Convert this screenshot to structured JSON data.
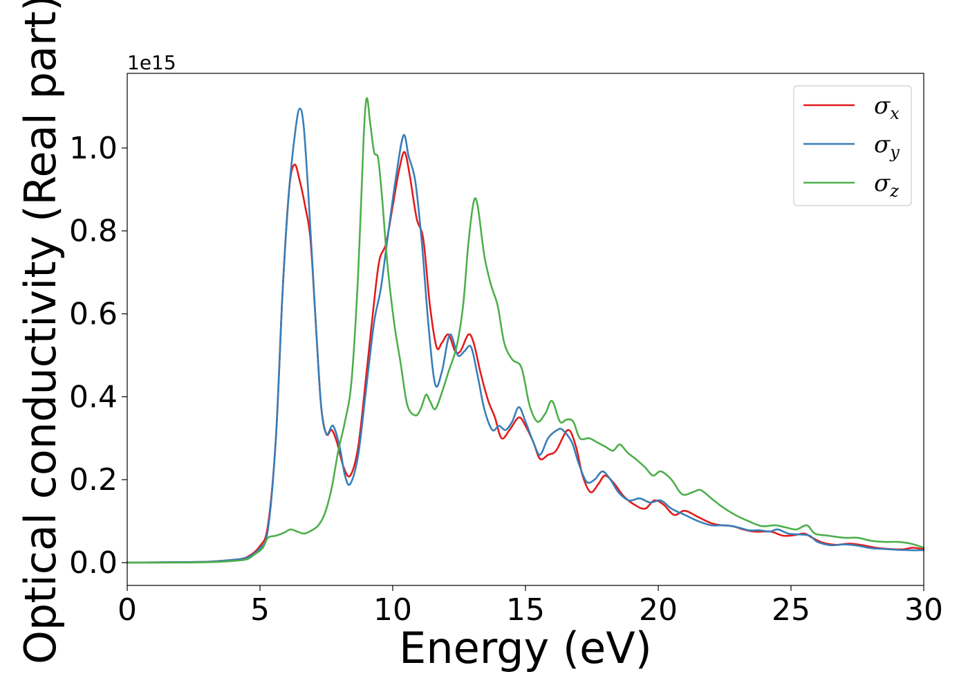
{
  "chart_data": {
    "type": "line",
    "title": "",
    "xlabel": "Energy (eV)",
    "ylabel": "Optical conductivity (Real part)",
    "y_offset_label": "1e15",
    "y_scale": 1000000000000000.0,
    "xlim": [
      0,
      30
    ],
    "ylim": [
      -0.055,
      1.18
    ],
    "xticks": [
      0,
      5,
      10,
      15,
      20,
      25,
      30
    ],
    "xtick_labels": [
      "0",
      "5",
      "10",
      "15",
      "20",
      "25",
      "30"
    ],
    "yticks": [
      0.0,
      0.2,
      0.4,
      0.6,
      0.8,
      1.0
    ],
    "ytick_labels": [
      "0.0",
      "0.2",
      "0.4",
      "0.6",
      "0.8",
      "1.0"
    ],
    "grid": false,
    "legend": "top-right",
    "series": [
      {
        "name": "σx",
        "symbol": "σ",
        "subscript": "x",
        "color": "#e41a1c",
        "points": [
          [
            0,
            0.0
          ],
          [
            2,
            0.001
          ],
          [
            3,
            0.002
          ],
          [
            3.5,
            0.004
          ],
          [
            4,
            0.007
          ],
          [
            4.5,
            0.013
          ],
          [
            5,
            0.04
          ],
          [
            5.3,
            0.09
          ],
          [
            5.6,
            0.3
          ],
          [
            5.85,
            0.65
          ],
          [
            6.1,
            0.9
          ],
          [
            6.3,
            0.96
          ],
          [
            6.5,
            0.92
          ],
          [
            6.7,
            0.86
          ],
          [
            6.9,
            0.78
          ],
          [
            7.1,
            0.58
          ],
          [
            7.3,
            0.38
          ],
          [
            7.5,
            0.31
          ],
          [
            7.7,
            0.32
          ],
          [
            7.9,
            0.29
          ],
          [
            8.15,
            0.23
          ],
          [
            8.4,
            0.21
          ],
          [
            8.7,
            0.28
          ],
          [
            9.0,
            0.45
          ],
          [
            9.3,
            0.63
          ],
          [
            9.5,
            0.73
          ],
          [
            9.75,
            0.77
          ],
          [
            10.0,
            0.86
          ],
          [
            10.25,
            0.95
          ],
          [
            10.45,
            0.99
          ],
          [
            10.65,
            0.93
          ],
          [
            10.9,
            0.83
          ],
          [
            11.15,
            0.78
          ],
          [
            11.4,
            0.62
          ],
          [
            11.65,
            0.52
          ],
          [
            11.85,
            0.53
          ],
          [
            12.1,
            0.55
          ],
          [
            12.35,
            0.51
          ],
          [
            12.55,
            0.51
          ],
          [
            12.85,
            0.55
          ],
          [
            13.05,
            0.53
          ],
          [
            13.3,
            0.46
          ],
          [
            13.6,
            0.39
          ],
          [
            13.85,
            0.35
          ],
          [
            14.1,
            0.3
          ],
          [
            14.4,
            0.32
          ],
          [
            14.75,
            0.35
          ],
          [
            15.0,
            0.33
          ],
          [
            15.3,
            0.29
          ],
          [
            15.55,
            0.25
          ],
          [
            15.85,
            0.26
          ],
          [
            16.15,
            0.27
          ],
          [
            16.6,
            0.32
          ],
          [
            16.9,
            0.28
          ],
          [
            17.15,
            0.21
          ],
          [
            17.45,
            0.17
          ],
          [
            17.75,
            0.19
          ],
          [
            18.0,
            0.21
          ],
          [
            18.35,
            0.19
          ],
          [
            18.7,
            0.16
          ],
          [
            19.1,
            0.14
          ],
          [
            19.5,
            0.13
          ],
          [
            19.85,
            0.15
          ],
          [
            20.2,
            0.14
          ],
          [
            20.6,
            0.115
          ],
          [
            21.0,
            0.125
          ],
          [
            21.5,
            0.11
          ],
          [
            22.0,
            0.095
          ],
          [
            22.4,
            0.09
          ],
          [
            22.8,
            0.088
          ],
          [
            23.2,
            0.08
          ],
          [
            23.6,
            0.075
          ],
          [
            24.0,
            0.075
          ],
          [
            24.3,
            0.074
          ],
          [
            24.7,
            0.065
          ],
          [
            25.1,
            0.066
          ],
          [
            25.5,
            0.07
          ],
          [
            25.8,
            0.06
          ],
          [
            26.2,
            0.048
          ],
          [
            26.7,
            0.043
          ],
          [
            27.2,
            0.046
          ],
          [
            27.7,
            0.042
          ],
          [
            28.2,
            0.036
          ],
          [
            28.7,
            0.033
          ],
          [
            29.2,
            0.032
          ],
          [
            29.6,
            0.036
          ],
          [
            30.0,
            0.032
          ]
        ]
      },
      {
        "name": "σy",
        "symbol": "σ",
        "subscript": "y",
        "color": "#377eb8",
        "points": [
          [
            0,
            0.0
          ],
          [
            2,
            0.001
          ],
          [
            3,
            0.002
          ],
          [
            3.5,
            0.004
          ],
          [
            4,
            0.007
          ],
          [
            4.5,
            0.012
          ],
          [
            5,
            0.035
          ],
          [
            5.3,
            0.08
          ],
          [
            5.6,
            0.3
          ],
          [
            5.85,
            0.65
          ],
          [
            6.1,
            0.9
          ],
          [
            6.35,
            1.05
          ],
          [
            6.5,
            1.095
          ],
          [
            6.65,
            1.05
          ],
          [
            6.85,
            0.86
          ],
          [
            7.1,
            0.58
          ],
          [
            7.3,
            0.38
          ],
          [
            7.5,
            0.31
          ],
          [
            7.75,
            0.33
          ],
          [
            8.0,
            0.28
          ],
          [
            8.2,
            0.21
          ],
          [
            8.4,
            0.19
          ],
          [
            8.7,
            0.26
          ],
          [
            9.0,
            0.42
          ],
          [
            9.3,
            0.58
          ],
          [
            9.55,
            0.66
          ],
          [
            9.8,
            0.78
          ],
          [
            10.1,
            0.92
          ],
          [
            10.4,
            1.03
          ],
          [
            10.6,
            0.98
          ],
          [
            10.85,
            0.92
          ],
          [
            11.1,
            0.77
          ],
          [
            11.35,
            0.57
          ],
          [
            11.6,
            0.43
          ],
          [
            11.85,
            0.46
          ],
          [
            12.15,
            0.55
          ],
          [
            12.45,
            0.5
          ],
          [
            12.7,
            0.51
          ],
          [
            12.95,
            0.52
          ],
          [
            13.2,
            0.45
          ],
          [
            13.45,
            0.37
          ],
          [
            13.75,
            0.32
          ],
          [
            14.0,
            0.33
          ],
          [
            14.25,
            0.32
          ],
          [
            14.5,
            0.34
          ],
          [
            14.75,
            0.375
          ],
          [
            15.0,
            0.34
          ],
          [
            15.3,
            0.29
          ],
          [
            15.55,
            0.26
          ],
          [
            15.85,
            0.3
          ],
          [
            16.2,
            0.32
          ],
          [
            16.4,
            0.32
          ],
          [
            16.75,
            0.29
          ],
          [
            17.0,
            0.24
          ],
          [
            17.3,
            0.195
          ],
          [
            17.6,
            0.2
          ],
          [
            17.9,
            0.22
          ],
          [
            18.2,
            0.2
          ],
          [
            18.5,
            0.17
          ],
          [
            18.9,
            0.15
          ],
          [
            19.3,
            0.155
          ],
          [
            19.7,
            0.145
          ],
          [
            20.1,
            0.15
          ],
          [
            20.5,
            0.13
          ],
          [
            21.0,
            0.115
          ],
          [
            21.5,
            0.1
          ],
          [
            22.0,
            0.09
          ],
          [
            22.5,
            0.09
          ],
          [
            23.0,
            0.085
          ],
          [
            23.4,
            0.078
          ],
          [
            23.8,
            0.078
          ],
          [
            24.2,
            0.075
          ],
          [
            24.5,
            0.08
          ],
          [
            24.9,
            0.07
          ],
          [
            25.3,
            0.068
          ],
          [
            25.7,
            0.065
          ],
          [
            26.0,
            0.05
          ],
          [
            26.5,
            0.042
          ],
          [
            27.0,
            0.044
          ],
          [
            27.5,
            0.041
          ],
          [
            28.0,
            0.035
          ],
          [
            28.5,
            0.033
          ],
          [
            29.0,
            0.031
          ],
          [
            29.5,
            0.03
          ],
          [
            30.0,
            0.03
          ]
        ]
      },
      {
        "name": "σz",
        "symbol": "σ",
        "subscript": "z",
        "color": "#4daf4a",
        "points": [
          [
            0,
            0.0
          ],
          [
            2,
            0.0
          ],
          [
            3,
            0.001
          ],
          [
            3.5,
            0.002
          ],
          [
            4,
            0.004
          ],
          [
            4.5,
            0.008
          ],
          [
            4.8,
            0.02
          ],
          [
            5.1,
            0.035
          ],
          [
            5.3,
            0.06
          ],
          [
            5.6,
            0.065
          ],
          [
            5.9,
            0.072
          ],
          [
            6.15,
            0.08
          ],
          [
            6.4,
            0.075
          ],
          [
            6.65,
            0.07
          ],
          [
            6.9,
            0.076
          ],
          [
            7.2,
            0.09
          ],
          [
            7.45,
            0.12
          ],
          [
            7.7,
            0.18
          ],
          [
            7.95,
            0.27
          ],
          [
            8.2,
            0.34
          ],
          [
            8.45,
            0.44
          ],
          [
            8.7,
            0.7
          ],
          [
            8.9,
            1.02
          ],
          [
            9.02,
            1.12
          ],
          [
            9.15,
            1.06
          ],
          [
            9.3,
            0.99
          ],
          [
            9.45,
            0.975
          ],
          [
            9.6,
            0.88
          ],
          [
            9.8,
            0.72
          ],
          [
            10.05,
            0.58
          ],
          [
            10.3,
            0.48
          ],
          [
            10.55,
            0.38
          ],
          [
            10.85,
            0.355
          ],
          [
            11.05,
            0.37
          ],
          [
            11.25,
            0.405
          ],
          [
            11.4,
            0.39
          ],
          [
            11.6,
            0.37
          ],
          [
            11.85,
            0.41
          ],
          [
            12.1,
            0.46
          ],
          [
            12.4,
            0.52
          ],
          [
            12.65,
            0.62
          ],
          [
            12.85,
            0.77
          ],
          [
            13.05,
            0.87
          ],
          [
            13.2,
            0.86
          ],
          [
            13.45,
            0.74
          ],
          [
            13.7,
            0.67
          ],
          [
            13.95,
            0.62
          ],
          [
            14.2,
            0.53
          ],
          [
            14.5,
            0.49
          ],
          [
            14.85,
            0.47
          ],
          [
            15.15,
            0.38
          ],
          [
            15.45,
            0.34
          ],
          [
            15.75,
            0.36
          ],
          [
            16.0,
            0.39
          ],
          [
            16.3,
            0.34
          ],
          [
            16.55,
            0.345
          ],
          [
            16.8,
            0.34
          ],
          [
            17.05,
            0.3
          ],
          [
            17.4,
            0.3
          ],
          [
            17.7,
            0.29
          ],
          [
            18.0,
            0.28
          ],
          [
            18.3,
            0.27
          ],
          [
            18.55,
            0.285
          ],
          [
            18.85,
            0.265
          ],
          [
            19.15,
            0.25
          ],
          [
            19.5,
            0.23
          ],
          [
            19.8,
            0.21
          ],
          [
            20.1,
            0.22
          ],
          [
            20.5,
            0.2
          ],
          [
            20.9,
            0.165
          ],
          [
            21.3,
            0.17
          ],
          [
            21.6,
            0.175
          ],
          [
            22.0,
            0.155
          ],
          [
            22.4,
            0.135
          ],
          [
            22.9,
            0.115
          ],
          [
            23.4,
            0.1
          ],
          [
            23.9,
            0.088
          ],
          [
            24.4,
            0.09
          ],
          [
            24.8,
            0.085
          ],
          [
            25.2,
            0.08
          ],
          [
            25.6,
            0.09
          ],
          [
            25.9,
            0.07
          ],
          [
            26.4,
            0.065
          ],
          [
            27.0,
            0.06
          ],
          [
            27.5,
            0.06
          ],
          [
            28.0,
            0.053
          ],
          [
            28.5,
            0.05
          ],
          [
            29.0,
            0.05
          ],
          [
            29.5,
            0.046
          ],
          [
            30.0,
            0.036
          ]
        ]
      }
    ]
  }
}
